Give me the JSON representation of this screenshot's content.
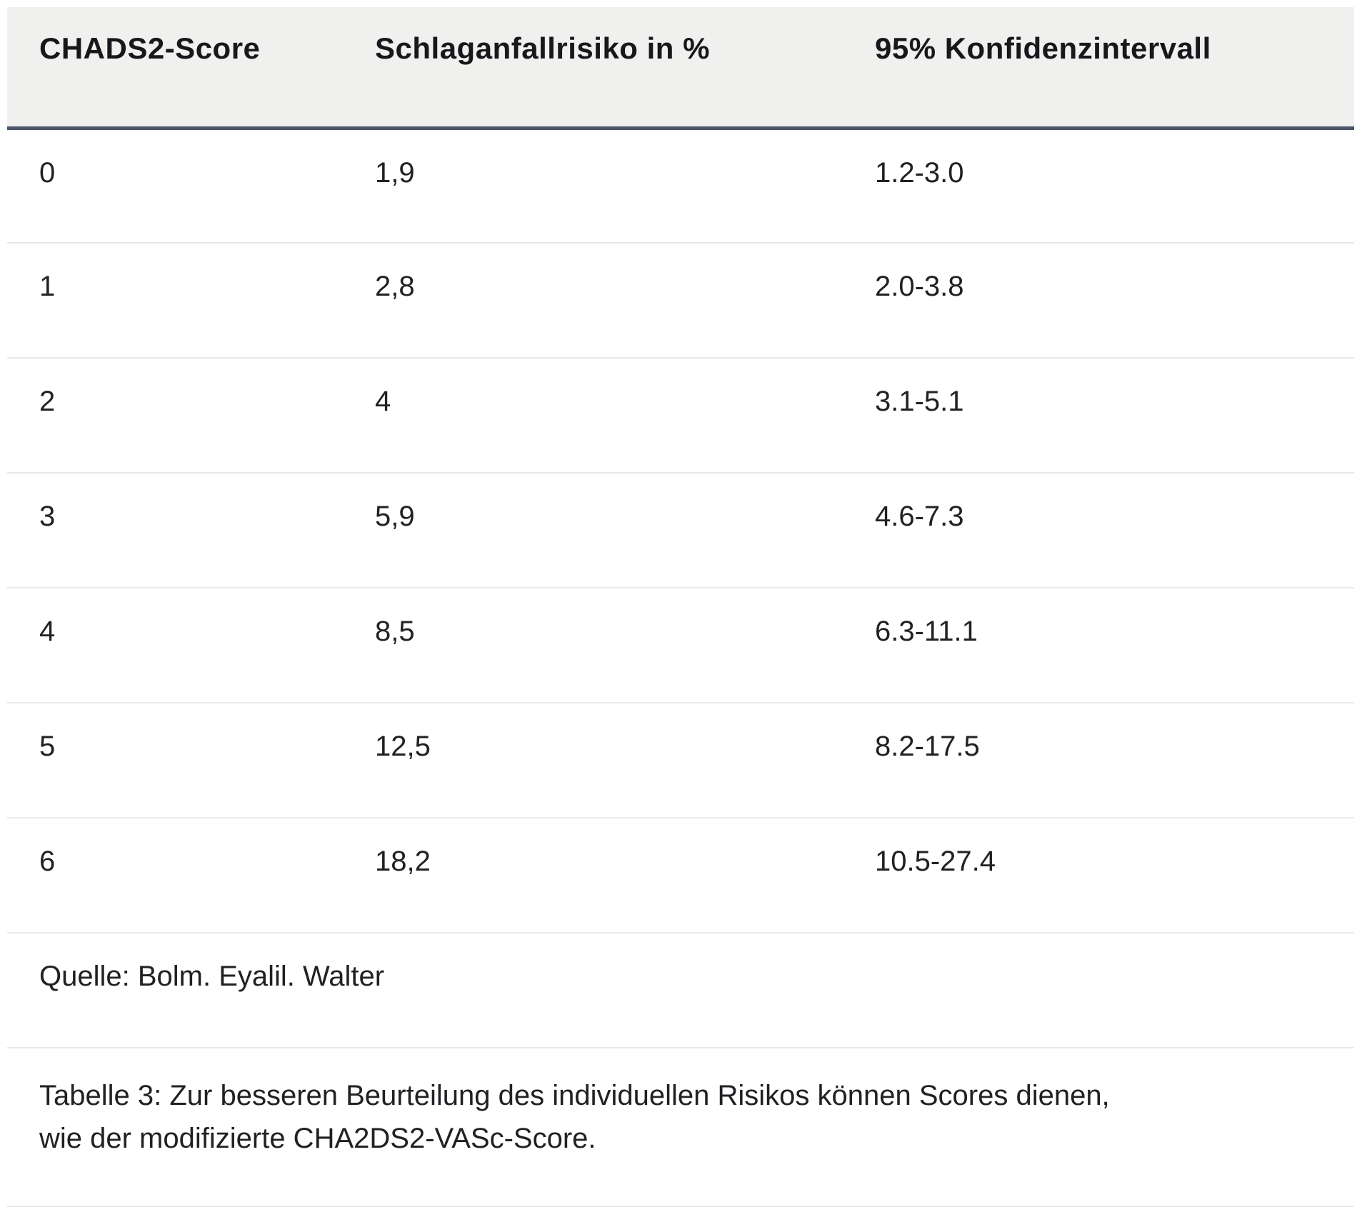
{
  "table": {
    "headers": {
      "score": "CHADS2-Score",
      "risk": "Schlaganfallrisiko in %",
      "ci": "95% Konfidenzintervall"
    },
    "rows": [
      {
        "score": "0",
        "risk": "1,9",
        "ci": "1.2-3.0"
      },
      {
        "score": "1",
        "risk": "2,8",
        "ci": "2.0-3.8"
      },
      {
        "score": "2",
        "risk": "4",
        "ci": "3.1-5.1"
      },
      {
        "score": "3",
        "risk": "5,9",
        "ci": "4.6-7.3"
      },
      {
        "score": "4",
        "risk": "8,5",
        "ci": "6.3-11.1"
      },
      {
        "score": "5",
        "risk": "12,5",
        "ci": "8.2-17.5"
      },
      {
        "score": "6",
        "risk": "18,2",
        "ci": "10.5-27.4"
      }
    ],
    "source": "Quelle: Bolm. Eyalil. Walter",
    "caption": "Tabelle 3: Zur besseren Beurteilung des individuellen Risikos können Scores dienen, wie der modifizierte CHA2DS2-VASc-Score."
  },
  "colors": {
    "header_background": "#f0f0ef",
    "header_border": "#4c566a",
    "row_separator": "#e9e9e9",
    "text": "#202124"
  }
}
